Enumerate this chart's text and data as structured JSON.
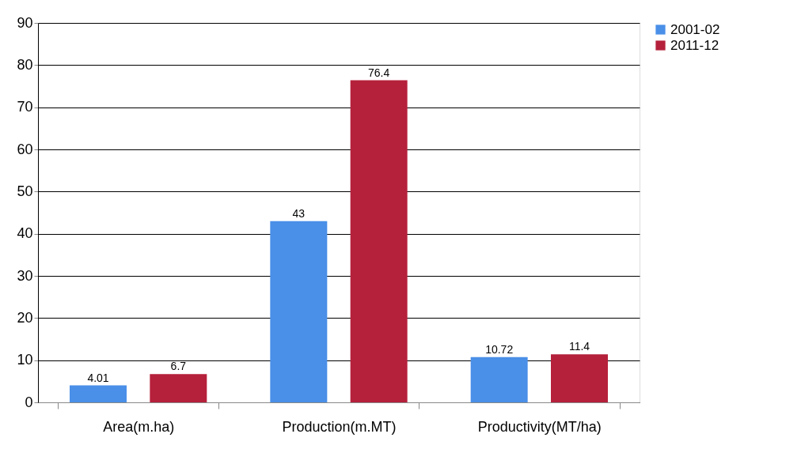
{
  "chart_data": {
    "type": "bar",
    "categories": [
      "Area(m.ha)",
      "Production(m.MT)",
      "Productivity(MT/ha)"
    ],
    "series": [
      {
        "name": "2001-02",
        "color": "#4a8fe8",
        "values": [
          4.01,
          43,
          10.72
        ]
      },
      {
        "name": "2011-12",
        "color": "#b5203b",
        "values": [
          6.7,
          76.4,
          11.4
        ]
      }
    ],
    "ylim": [
      0,
      90
    ],
    "yticks": [
      0,
      10,
      20,
      30,
      40,
      50,
      60,
      70,
      80,
      90
    ],
    "grid": "y",
    "legend": "right",
    "data_labels": true
  }
}
